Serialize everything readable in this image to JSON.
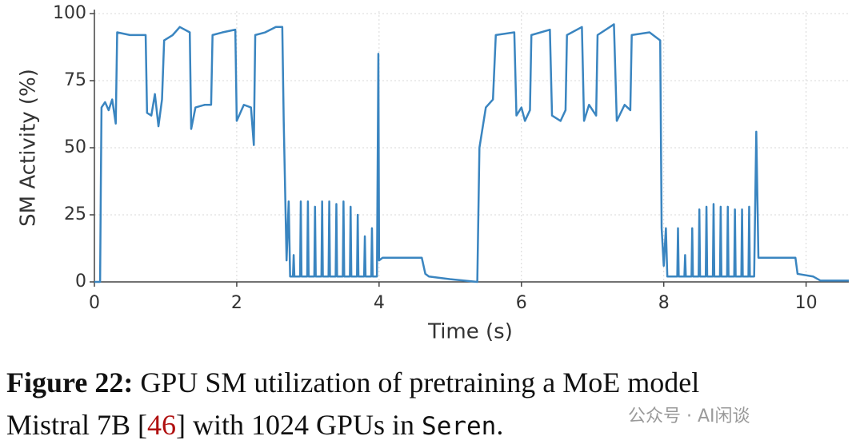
{
  "chart_data": {
    "type": "line",
    "xlabel": "Time (s)",
    "ylabel": "SM Activity (%)",
    "color": "#3a85c0",
    "grid": true,
    "xlim": [
      0,
      10.6
    ],
    "ylim": [
      0,
      100
    ],
    "xticks": [
      0,
      2,
      4,
      6,
      8,
      10
    ],
    "yticks": [
      0,
      25,
      50,
      75,
      100
    ],
    "x": [
      0,
      0.08,
      0.09,
      0.1,
      0.15,
      0.2,
      0.25,
      0.3,
      0.32,
      0.5,
      0.72,
      0.74,
      0.8,
      0.85,
      0.9,
      0.95,
      0.98,
      1.1,
      1.2,
      1.34,
      1.36,
      1.42,
      1.55,
      1.64,
      1.66,
      1.8,
      1.98,
      2.0,
      2.1,
      2.2,
      2.24,
      2.26,
      2.4,
      2.55,
      2.64,
      2.66,
      2.7,
      2.73,
      2.75,
      2.79,
      2.8,
      2.81,
      2.89,
      2.9,
      2.91,
      2.99,
      3.0,
      3.01,
      3.09,
      3.1,
      3.11,
      3.19,
      3.2,
      3.21,
      3.29,
      3.3,
      3.31,
      3.39,
      3.4,
      3.41,
      3.49,
      3.5,
      3.51,
      3.59,
      3.6,
      3.61,
      3.69,
      3.7,
      3.71,
      3.79,
      3.8,
      3.81,
      3.89,
      3.9,
      3.91,
      3.97,
      3.99,
      4.0,
      4.05,
      4.6,
      4.65,
      4.7,
      5.0,
      5.38,
      5.41,
      5.5,
      5.6,
      5.64,
      5.9,
      5.93,
      6.0,
      6.05,
      6.12,
      6.14,
      6.4,
      6.43,
      6.55,
      6.62,
      6.64,
      6.85,
      6.88,
      6.95,
      7.05,
      7.07,
      7.3,
      7.34,
      7.45,
      7.53,
      7.55,
      7.8,
      7.95,
      7.97,
      8.0,
      8.03,
      8.05,
      8.19,
      8.2,
      8.21,
      8.29,
      8.3,
      8.31,
      8.39,
      8.4,
      8.41,
      8.49,
      8.5,
      8.51,
      8.59,
      8.6,
      8.61,
      8.69,
      8.7,
      8.71,
      8.79,
      8.8,
      8.81,
      8.89,
      8.9,
      8.91,
      8.99,
      9.0,
      9.01,
      9.09,
      9.1,
      9.11,
      9.19,
      9.2,
      9.21,
      9.27,
      9.3,
      9.33,
      9.85,
      9.88,
      10.1,
      10.2,
      10.6
    ],
    "values": [
      0,
      0,
      35,
      65,
      67,
      64,
      68,
      59,
      93,
      92,
      92,
      63,
      62,
      70,
      58,
      68,
      90,
      92,
      95,
      93,
      57,
      65,
      66,
      66,
      92,
      93,
      94,
      60,
      66,
      65,
      51,
      92,
      93,
      95,
      95,
      60,
      8,
      30,
      2,
      2,
      10,
      2,
      2,
      30,
      2,
      2,
      30,
      2,
      2,
      28,
      2,
      2,
      30,
      2,
      2,
      30,
      2,
      2,
      29,
      2,
      2,
      30,
      2,
      2,
      28,
      2,
      2,
      25,
      2,
      2,
      17,
      2,
      2,
      20,
      2,
      2,
      85,
      8,
      9,
      9,
      3,
      2,
      1,
      0,
      50,
      65,
      68,
      92,
      93,
      62,
      65,
      60,
      64,
      92,
      94,
      62,
      60,
      64,
      92,
      95,
      60,
      66,
      62,
      92,
      96,
      60,
      66,
      64,
      92,
      93,
      90,
      20,
      6,
      20,
      2,
      2,
      20,
      2,
      2,
      10,
      2,
      2,
      20,
      2,
      2,
      27,
      2,
      2,
      28,
      2,
      2,
      29,
      2,
      2,
      28,
      2,
      2,
      28,
      2,
      2,
      27,
      2,
      2,
      27,
      2,
      2,
      28,
      2,
      2,
      56,
      9,
      9,
      3,
      2,
      0.5,
      0.5
    ],
    "caption": {
      "label": "Figure 22:",
      "line1": "GPU SM utilization of pretraining a MoE model",
      "line2_before": "Mistral 7B [",
      "ref": "46",
      "line2_mid": "] with 1024 GPUs in",
      "system": "Seren",
      "line2_end": "."
    },
    "watermark": "公众号 · AI闲谈"
  }
}
